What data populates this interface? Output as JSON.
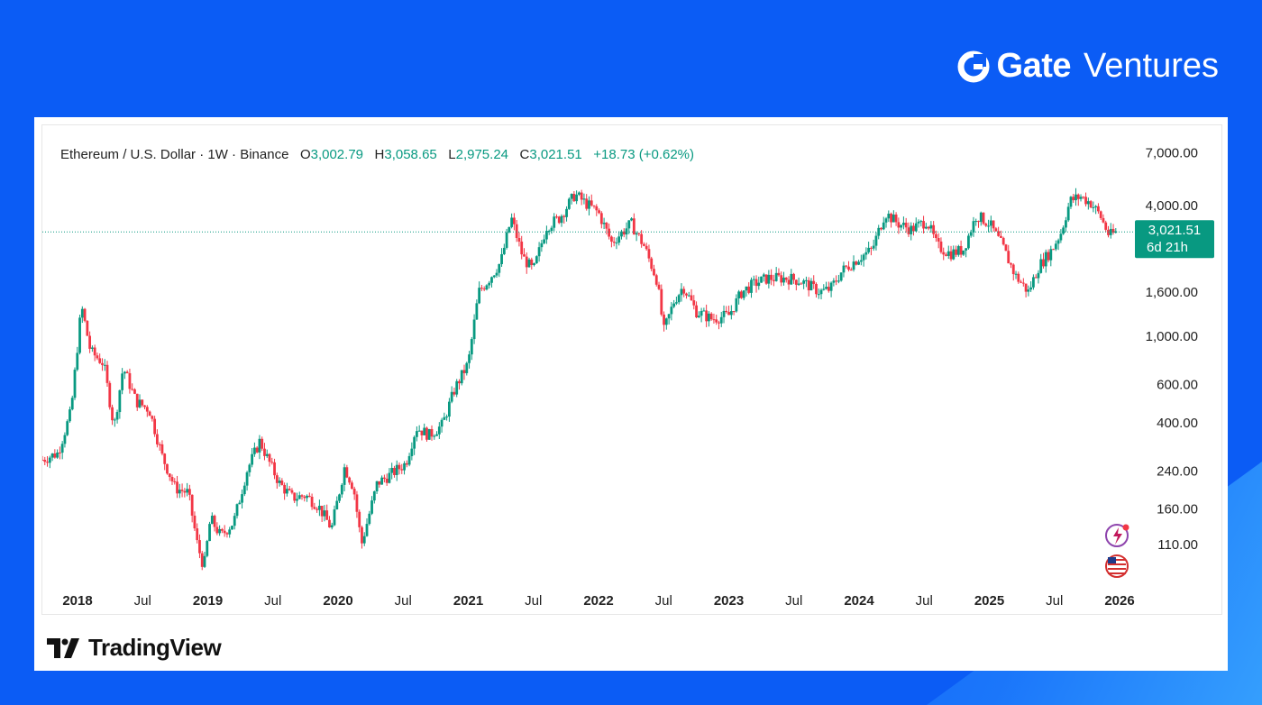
{
  "brand": {
    "name": "Gate",
    "sub": "Ventures",
    "icon": "gate-logo-icon"
  },
  "footer": {
    "logo_icon": "tradingview-logo-icon",
    "logo_text": "TradingView"
  },
  "header": {
    "symbol": "Ethereum / U.S. Dollar · 1W · Binance",
    "open_label": "O",
    "open": "3,002.79",
    "high_label": "H",
    "high": "3,058.65",
    "low_label": "L",
    "low": "2,975.24",
    "close_label": "C",
    "close": "3,021.51",
    "change": "+18.73 (+0.62%)"
  },
  "price_tag": {
    "value": "3,021.51",
    "countdown": "6d 21h"
  },
  "side_icons": [
    "flash-news-icon",
    "us-flag-icon"
  ],
  "colors": {
    "up": "#089981",
    "down": "#f23645",
    "brand_bg": "#0b5cf5",
    "tag": "#089981"
  },
  "chart_data": {
    "type": "candlestick",
    "scale": "log",
    "ylim": [
      75,
      8500
    ],
    "y_ticks": [
      "7,000.00",
      "4,000.00",
      "1,600.00",
      "1,000.00",
      "600.00",
      "400.00",
      "240.00",
      "160.00",
      "110.00"
    ],
    "y_tick_values": [
      7000,
      4000,
      1600,
      1000,
      600,
      400,
      240,
      160,
      110
    ],
    "x_ticks": [
      "2018",
      "Jul",
      "2019",
      "Jul",
      "2020",
      "Jul",
      "2021",
      "Jul",
      "2022",
      "Jul",
      "2023",
      "Jul",
      "2024",
      "Jul",
      "2025",
      "Jul",
      "2026"
    ],
    "x_tick_values": [
      2018.0,
      2018.5,
      2019.0,
      2019.5,
      2020.0,
      2020.5,
      2021.0,
      2021.5,
      2022.0,
      2022.5,
      2023.0,
      2023.5,
      2024.0,
      2024.5,
      2025.0,
      2025.5,
      2026.0
    ],
    "xlim": [
      2017.73,
      2026.0
    ],
    "last_price": 3021.51,
    "path": [
      [
        2017.73,
        270
      ],
      [
        2017.85,
        290
      ],
      [
        2017.95,
        450
      ],
      [
        2018.03,
        1380
      ],
      [
        2018.1,
        850
      ],
      [
        2018.2,
        750
      ],
      [
        2018.28,
        380
      ],
      [
        2018.35,
        720
      ],
      [
        2018.45,
        500
      ],
      [
        2018.55,
        460
      ],
      [
        2018.65,
        280
      ],
      [
        2018.75,
        200
      ],
      [
        2018.85,
        190
      ],
      [
        2018.92,
        110
      ],
      [
        2018.97,
        86
      ],
      [
        2019.02,
        145
      ],
      [
        2019.1,
        120
      ],
      [
        2019.2,
        140
      ],
      [
        2019.3,
        240
      ],
      [
        2019.4,
        330
      ],
      [
        2019.45,
        280
      ],
      [
        2019.55,
        210
      ],
      [
        2019.65,
        180
      ],
      [
        2019.75,
        185
      ],
      [
        2019.85,
        165
      ],
      [
        2019.95,
        130
      ],
      [
        2020.05,
        250
      ],
      [
        2020.12,
        200
      ],
      [
        2020.18,
        110
      ],
      [
        2020.3,
        210
      ],
      [
        2020.4,
        230
      ],
      [
        2020.52,
        260
      ],
      [
        2020.6,
        380
      ],
      [
        2020.7,
        350
      ],
      [
        2020.8,
        390
      ],
      [
        2020.9,
        580
      ],
      [
        2021.0,
        750
      ],
      [
        2021.08,
        1600
      ],
      [
        2021.15,
        1800
      ],
      [
        2021.25,
        2200
      ],
      [
        2021.33,
        3500
      ],
      [
        2021.42,
        2300
      ],
      [
        2021.5,
        2000
      ],
      [
        2021.6,
        3200
      ],
      [
        2021.7,
        3500
      ],
      [
        2021.82,
        4500
      ],
      [
        2021.9,
        4100
      ],
      [
        2022.0,
        3700
      ],
      [
        2022.1,
        2700
      ],
      [
        2022.25,
        3300
      ],
      [
        2022.35,
        2600
      ],
      [
        2022.45,
        1800
      ],
      [
        2022.5,
        1050
      ],
      [
        2022.58,
        1450
      ],
      [
        2022.65,
        1700
      ],
      [
        2022.75,
        1300
      ],
      [
        2022.87,
        1200
      ],
      [
        2023.0,
        1250
      ],
      [
        2023.1,
        1600
      ],
      [
        2023.2,
        1750
      ],
      [
        2023.3,
        1850
      ],
      [
        2023.45,
        1850
      ],
      [
        2023.55,
        1800
      ],
      [
        2023.7,
        1600
      ],
      [
        2023.78,
        1650
      ],
      [
        2023.87,
        2000
      ],
      [
        2024.0,
        2300
      ],
      [
        2024.1,
        2500
      ],
      [
        2024.2,
        3700
      ],
      [
        2024.3,
        3300
      ],
      [
        2024.4,
        3100
      ],
      [
        2024.52,
        3400
      ],
      [
        2024.6,
        2600
      ],
      [
        2024.7,
        2400
      ],
      [
        2024.8,
        2500
      ],
      [
        2024.9,
        3600
      ],
      [
        2025.0,
        3300
      ],
      [
        2025.1,
        2600
      ],
      [
        2025.2,
        1900
      ],
      [
        2025.3,
        1600
      ],
      [
        2025.38,
        2100
      ],
      [
        2025.48,
        2500
      ],
      [
        2025.55,
        3000
      ],
      [
        2025.62,
        4200
      ],
      [
        2025.7,
        4400
      ],
      [
        2025.78,
        4100
      ],
      [
        2025.85,
        3600
      ],
      [
        2025.92,
        2900
      ],
      [
        2025.98,
        3021
      ]
    ]
  }
}
